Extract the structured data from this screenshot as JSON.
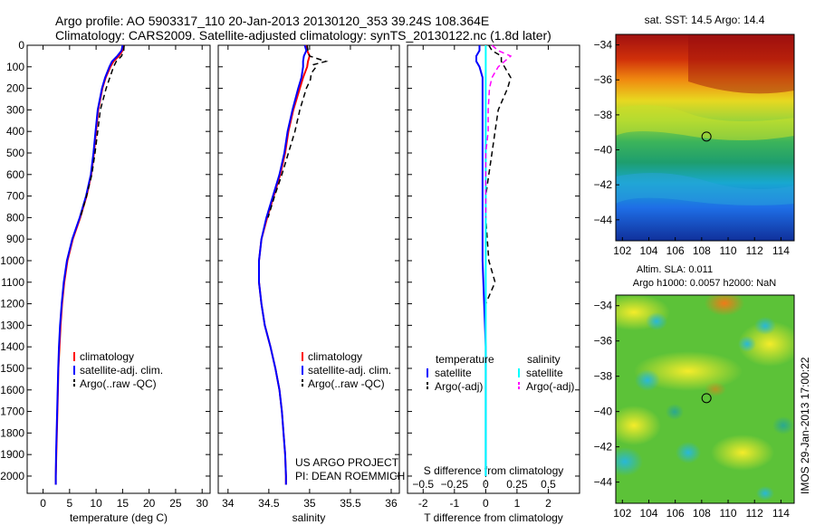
{
  "header": {
    "line1": "Argo profile: AO 5903317_110 20-Jan-2013 20130120_353 39.24S 108.364E",
    "line2": "Climatology: CARS2009. Satellite-adjusted climatology: synTS_20130122.nc (1.8d later)"
  },
  "side_label": "IMOS 29-Jan-2013 17:00:22",
  "project": {
    "line1": "US ARGO PROJECT",
    "line2": "PI: DEAN ROEMMICH"
  },
  "colors": {
    "climatology": "#ff0000",
    "satellite": "#0000ff",
    "argo": "#000000",
    "satellite_s": "#00ffff",
    "argo_s": "#ff00ff"
  },
  "chart_data": [
    {
      "type": "line",
      "name": "temperature-profile",
      "xlabel": "temperature (deg C)",
      "ylabel": "",
      "xlim": [
        -3,
        31.5
      ],
      "ylim": [
        2080,
        0
      ],
      "xticks": [
        0,
        5,
        10,
        15,
        20,
        25,
        30
      ],
      "yticks": [
        0,
        100,
        200,
        300,
        400,
        500,
        600,
        700,
        800,
        900,
        1000,
        1100,
        1200,
        1300,
        1400,
        1500,
        1600,
        1700,
        1800,
        1900,
        2000
      ],
      "legend": [
        "climatology",
        "satellite-adj. clim.",
        "Argo(..raw -QC)"
      ],
      "legend_position": "lower-center",
      "series": [
        {
          "name": "climatology",
          "style": "red",
          "depth": [
            0,
            25,
            50,
            75,
            100,
            150,
            200,
            300,
            400,
            500,
            600,
            700,
            800,
            900,
            1000,
            1100,
            1200,
            1300,
            1400,
            1500,
            1600,
            1700,
            1800,
            1900,
            2000,
            2040
          ],
          "values": [
            15.2,
            15.0,
            14.3,
            13.3,
            12.7,
            11.8,
            11.2,
            10.4,
            10.0,
            9.6,
            9.1,
            8.2,
            7.0,
            5.6,
            4.6,
            4.0,
            3.6,
            3.3,
            3.1,
            2.9,
            2.8,
            2.7,
            2.6,
            2.5,
            2.4,
            2.4
          ]
        },
        {
          "name": "satellite-adj. clim.",
          "style": "blue",
          "depth": [
            0,
            25,
            50,
            75,
            100,
            150,
            200,
            300,
            400,
            500,
            600,
            700,
            800,
            900,
            1000,
            1100,
            1200,
            1300,
            1400,
            1500,
            1600,
            1700,
            1800,
            1900,
            2000,
            2040
          ],
          "values": [
            15.0,
            14.8,
            14.0,
            13.0,
            12.5,
            11.7,
            11.1,
            10.3,
            9.9,
            9.5,
            9.0,
            8.1,
            6.9,
            5.5,
            4.5,
            3.9,
            3.5,
            3.2,
            3.0,
            2.85,
            2.75,
            2.65,
            2.55,
            2.45,
            2.4,
            2.4
          ]
        },
        {
          "name": "Argo(..raw -QC)",
          "style": "black-dashed",
          "depth": [
            0,
            25,
            50,
            75,
            100,
            150,
            200,
            300,
            400,
            500,
            600,
            700,
            800
          ],
          "values": [
            15.3,
            15.2,
            14.8,
            13.8,
            13.3,
            12.6,
            11.9,
            10.8,
            10.3,
            9.8,
            9.2,
            8.2,
            7.0
          ]
        }
      ]
    },
    {
      "type": "line",
      "name": "salinity-profile",
      "xlabel": "salinity",
      "ylabel": "",
      "xlim": [
        33.88,
        36.1
      ],
      "ylim": [
        2080,
        0
      ],
      "xticks": [
        34,
        34.5,
        35,
        35.5,
        36
      ],
      "legend": [
        "climatology",
        "satellite-adj. clim.",
        "Argo(..raw -QC)"
      ],
      "legend_position": "lower-right",
      "series": [
        {
          "name": "climatology",
          "style": "red",
          "depth": [
            0,
            25,
            50,
            75,
            100,
            150,
            200,
            300,
            400,
            500,
            600,
            700,
            800,
            900,
            1000,
            1100,
            1200,
            1300,
            1400,
            1500,
            1600,
            1700,
            1800,
            1900,
            2000,
            2040
          ],
          "values": [
            34.95,
            34.97,
            35.0,
            34.98,
            34.97,
            34.92,
            34.88,
            34.8,
            34.74,
            34.7,
            34.64,
            34.56,
            34.48,
            34.41,
            34.38,
            34.38,
            34.41,
            34.45,
            34.52,
            34.58,
            34.63,
            34.66,
            34.68,
            34.7,
            34.71,
            34.71
          ]
        },
        {
          "name": "satellite-adj. clim.",
          "style": "blue",
          "depth": [
            0,
            25,
            50,
            75,
            100,
            150,
            200,
            300,
            400,
            500,
            600,
            700,
            800,
            900,
            1000,
            1100,
            1200,
            1300,
            1400,
            1500,
            1600,
            1700,
            1800,
            1900,
            2000,
            2040
          ],
          "values": [
            34.94,
            34.96,
            34.93,
            34.92,
            34.92,
            34.9,
            34.86,
            34.79,
            34.73,
            34.69,
            34.63,
            34.55,
            34.47,
            34.41,
            34.38,
            34.38,
            34.41,
            34.45,
            34.52,
            34.58,
            34.63,
            34.66,
            34.68,
            34.7,
            34.71,
            34.71
          ]
        },
        {
          "name": "Argo(..raw -QC)",
          "style": "black-dashed",
          "depth": [
            0,
            25,
            50,
            65,
            75,
            90,
            100,
            130,
            160,
            200,
            300,
            400,
            500,
            600,
            700,
            800
          ],
          "values": [
            34.97,
            34.98,
            35.0,
            35.12,
            35.2,
            35.05,
            35.08,
            35.02,
            35.01,
            34.96,
            34.88,
            34.82,
            34.74,
            34.66,
            34.57,
            34.49
          ]
        }
      ]
    },
    {
      "type": "line",
      "name": "difference-profile",
      "xlabel": "T difference from climatology",
      "xlabel_top": "S difference from climatology",
      "xlim": [
        -2.5,
        3
      ],
      "ylim": [
        2080,
        0
      ],
      "xticks": [
        -2,
        -1,
        0,
        1,
        2
      ],
      "xticks_s": [
        -0.5,
        -0.25,
        0,
        0.25,
        0.5
      ],
      "legend_headers": [
        "temperature",
        "salinity"
      ],
      "legend": [
        "satellite",
        "Argo(-adj)",
        "satellite",
        "Argo(-adj)"
      ],
      "legend_position": "lower-center",
      "series": [
        {
          "name": "satellite",
          "variable": "temperature",
          "style": "blue",
          "depth": [
            0,
            25,
            50,
            75,
            100,
            150,
            200,
            300,
            400,
            500,
            600,
            800,
            1000,
            1400,
            2000
          ],
          "values": [
            -0.2,
            -0.2,
            -0.3,
            -0.3,
            -0.2,
            -0.1,
            -0.1,
            -0.1,
            -0.1,
            -0.1,
            -0.1,
            -0.1,
            -0.1,
            0,
            0
          ]
        },
        {
          "name": "Argo(-adj)",
          "variable": "temperature",
          "style": "black-dashed",
          "depth": [
            0,
            25,
            50,
            75,
            100,
            150,
            200,
            300,
            400,
            500,
            600,
            700,
            800,
            1000,
            1050,
            1100,
            1200
          ],
          "values": [
            0.1,
            0.2,
            0.5,
            0.5,
            0.6,
            0.8,
            0.7,
            0.4,
            0.3,
            0.2,
            0.1,
            0.0,
            0.0,
            0.1,
            0.2,
            0.3,
            0.0
          ]
        },
        {
          "name": "satellite",
          "variable": "salinity",
          "style": "cyan",
          "depth": [
            0,
            50,
            100,
            200,
            400,
            800,
            1200,
            2000
          ],
          "values": [
            0,
            0,
            0,
            0,
            0,
            0,
            0,
            0
          ]
        },
        {
          "name": "Argo(-adj)",
          "variable": "salinity",
          "style": "magenta-dashed",
          "depth": [
            0,
            25,
            50,
            75,
            100,
            150,
            200,
            300,
            400,
            500,
            600,
            700,
            800
          ],
          "values": [
            0.05,
            0.1,
            0.2,
            0.15,
            0.1,
            0.05,
            0.03,
            0.02,
            0.02,
            0.0,
            0.0,
            0.0,
            0.0
          ]
        }
      ]
    },
    {
      "type": "heatmap",
      "name": "sst-map",
      "title": "sat. SST: 14.5  Argo: 14.4",
      "xlim": [
        101.5,
        115
      ],
      "ylim": [
        -45.2,
        -33.4
      ],
      "xticks": [
        102,
        104,
        106,
        108,
        110,
        112,
        114
      ],
      "yticks": [
        -34,
        -36,
        -38,
        -40,
        -42,
        -44
      ],
      "marker": {
        "lon": 108.364,
        "lat": -39.24
      }
    },
    {
      "type": "heatmap",
      "name": "sla-map",
      "title": "Altim. SLA: 0.011",
      "subtitle": "Argo h1000: 0.0057 h2000: NaN",
      "xlim": [
        101.5,
        115
      ],
      "ylim": [
        -45.2,
        -33.4
      ],
      "xticks": [
        102,
        104,
        106,
        108,
        110,
        112,
        114
      ],
      "yticks": [
        -34,
        -36,
        -38,
        -40,
        -42,
        -44
      ],
      "marker": {
        "lon": 108.364,
        "lat": -39.24
      }
    }
  ]
}
